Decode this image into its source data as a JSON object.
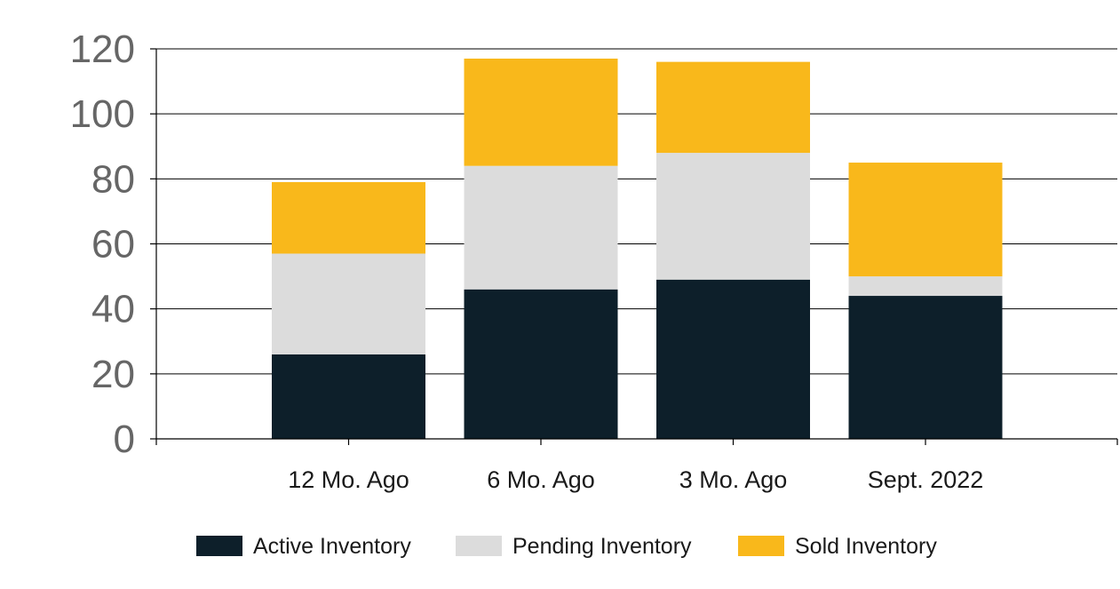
{
  "chart_data": {
    "type": "bar",
    "stacked": true,
    "categories": [
      "12 Mo. Ago",
      "6 Mo. Ago",
      "3 Mo. Ago",
      "Sept. 2022"
    ],
    "series": [
      {
        "name": "Active Inventory",
        "color": "#0d1f2a",
        "values": [
          26,
          46,
          49,
          44
        ]
      },
      {
        "name": "Pending Inventory",
        "color": "#dcdcdc",
        "values": [
          31,
          38,
          39,
          6
        ]
      },
      {
        "name": "Sold Inventory",
        "color": "#f9b81b",
        "values": [
          22,
          33,
          28,
          35
        ]
      }
    ],
    "title": "",
    "xlabel": "",
    "ylabel": "",
    "ylim": [
      0,
      120
    ],
    "yticks": [
      0,
      20,
      40,
      60,
      80,
      100,
      120
    ],
    "grid": true,
    "legend_position": "bottom"
  }
}
